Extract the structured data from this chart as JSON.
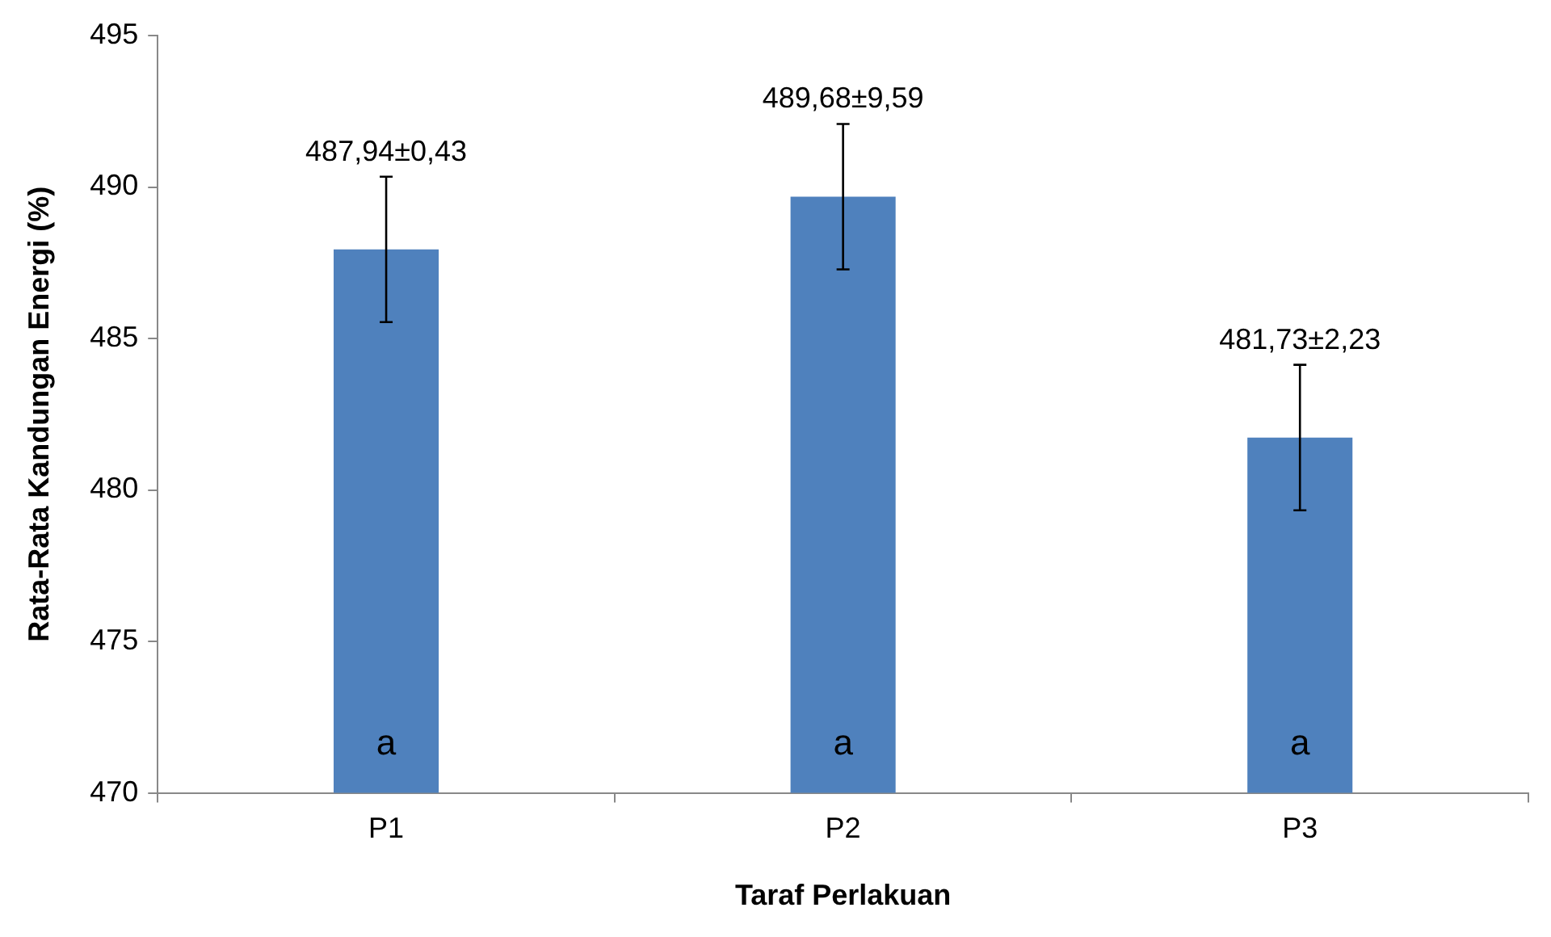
{
  "chart_data": {
    "type": "bar",
    "xlabel": "Taraf Perlakuan",
    "ylabel": "Rata-Rata Kandungan Energi (%)",
    "categories": [
      "P1",
      "P2",
      "P3"
    ],
    "values": [
      487.94,
      489.68,
      481.73
    ],
    "color": "#4f81bd",
    "errors": [
      2.4,
      2.4,
      2.4
    ],
    "value_labels": [
      "487,94±0,43",
      "489,68±9,59",
      "481,73±2,23"
    ],
    "annotations": [
      "a",
      "a",
      "a"
    ],
    "ylim": [
      470,
      495
    ],
    "yticks": [
      470,
      475,
      480,
      485,
      490,
      495
    ],
    "grid": false,
    "legend": false
  }
}
